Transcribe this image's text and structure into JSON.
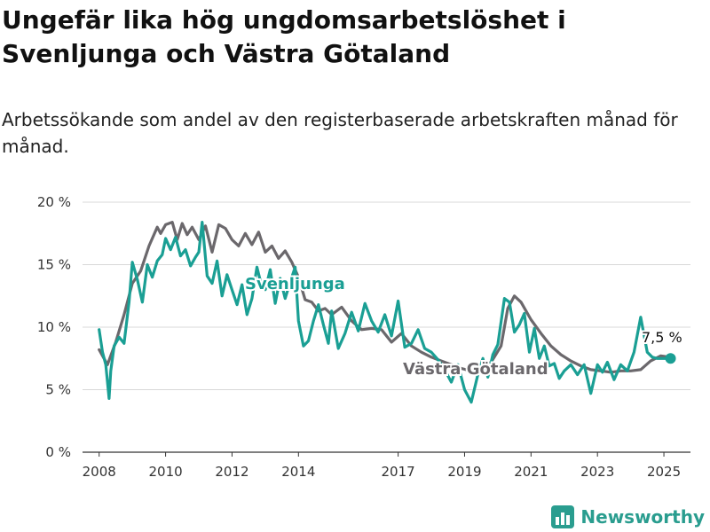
{
  "title": "Ungefär lika hög ungdomsarbetslöshet i Svenljunga och Västra Götaland",
  "subtitle": "Arbetssökande som andel av den registerbaserade arbetskraften månad för månad.",
  "brand": "Newsworthy",
  "colors": {
    "local": "#1a9f94",
    "region": "#6b686c",
    "grid": "#d8d8d8",
    "brand": "#2a9d8f"
  },
  "chart_data": {
    "type": "line",
    "ylim": [
      0,
      20
    ],
    "xlim": [
      2007.5,
      2025.8
    ],
    "yticks": [
      0,
      5,
      10,
      15,
      20
    ],
    "ytick_labels": [
      "0 %",
      "5 %",
      "10 %",
      "15 %",
      "20 %"
    ],
    "xticks": [
      2008,
      2010,
      2012,
      2014,
      2017,
      2019,
      2021,
      2023,
      2025
    ],
    "xtick_labels": [
      "2008",
      "2010",
      "2012",
      "2014",
      "2017",
      "2019",
      "2021",
      "2023",
      "2025"
    ],
    "last_value_label": "7,5 %",
    "series": [
      {
        "name": "Svenljunga",
        "x": [
          2008.0,
          2008.1,
          2008.2,
          2008.3,
          2008.35,
          2008.45,
          2008.6,
          2008.75,
          2008.9,
          2009.0,
          2009.15,
          2009.3,
          2009.45,
          2009.6,
          2009.75,
          2009.9,
          2010.0,
          2010.15,
          2010.3,
          2010.45,
          2010.6,
          2010.75,
          2010.9,
          2011.0,
          2011.1,
          2011.25,
          2011.4,
          2011.55,
          2011.7,
          2011.85,
          2012.0,
          2012.15,
          2012.3,
          2012.45,
          2012.6,
          2012.75,
          2012.9,
          2013.0,
          2013.15,
          2013.3,
          2013.45,
          2013.6,
          2013.75,
          2013.9,
          2014.0,
          2014.15,
          2014.3,
          2014.45,
          2014.6,
          2014.75,
          2014.9,
          2015.0,
          2015.2,
          2015.4,
          2015.6,
          2015.8,
          2016.0,
          2016.2,
          2016.4,
          2016.6,
          2016.8,
          2017.0,
          2017.2,
          2017.4,
          2017.6,
          2017.8,
          2018.0,
          2018.2,
          2018.4,
          2018.6,
          2018.8,
          2019.0,
          2019.2,
          2019.4,
          2019.55,
          2019.7,
          2019.85,
          2020.0,
          2020.2,
          2020.35,
          2020.5,
          2020.65,
          2020.8,
          2020.95,
          2021.1,
          2021.25,
          2021.4,
          2021.55,
          2021.7,
          2021.85,
          2022.0,
          2022.2,
          2022.4,
          2022.6,
          2022.8,
          2023.0,
          2023.15,
          2023.3,
          2023.5,
          2023.7,
          2023.9,
          2024.1,
          2024.3,
          2024.5,
          2024.65,
          2024.8,
          2025.0,
          2025.2
        ],
        "values": [
          9.8,
          8.0,
          7.0,
          4.3,
          6.5,
          8.5,
          9.2,
          8.7,
          12.0,
          15.2,
          13.8,
          12.0,
          15.0,
          14.0,
          15.3,
          15.8,
          17.1,
          16.2,
          17.2,
          15.7,
          16.2,
          14.9,
          15.6,
          16.0,
          18.4,
          14.1,
          13.5,
          15.3,
          12.5,
          14.2,
          13.0,
          11.8,
          13.4,
          11.0,
          12.3,
          14.8,
          13.2,
          13.0,
          14.6,
          11.9,
          13.9,
          12.3,
          13.6,
          14.8,
          10.5,
          8.5,
          8.9,
          10.5,
          11.8,
          10.2,
          8.7,
          11.3,
          8.3,
          9.5,
          11.2,
          9.7,
          11.9,
          10.5,
          9.6,
          11.0,
          9.3,
          12.1,
          8.4,
          8.7,
          9.8,
          8.3,
          8.0,
          7.4,
          6.6,
          5.6,
          7.0,
          5.0,
          4.0,
          6.2,
          7.5,
          6.0,
          7.8,
          8.6,
          12.3,
          12.0,
          9.6,
          10.2,
          11.1,
          8.0,
          9.9,
          7.5,
          8.5,
          6.9,
          7.1,
          5.9,
          6.5,
          7.0,
          6.2,
          7.0,
          4.7,
          7.0,
          6.4,
          7.2,
          5.8,
          7.0,
          6.5,
          8.0,
          10.8,
          8.0,
          7.6,
          7.5,
          7.5,
          7.5
        ]
      },
      {
        "name": "Västra Götaland",
        "x": [
          2008.0,
          2008.25,
          2008.5,
          2008.75,
          2009.0,
          2009.25,
          2009.5,
          2009.75,
          2009.85,
          2010.0,
          2010.2,
          2010.35,
          2010.5,
          2010.65,
          2010.8,
          2011.0,
          2011.2,
          2011.4,
          2011.6,
          2011.8,
          2012.0,
          2012.2,
          2012.4,
          2012.6,
          2012.8,
          2013.0,
          2013.2,
          2013.4,
          2013.6,
          2013.8,
          2014.0,
          2014.2,
          2014.4,
          2014.6,
          2014.8,
          2015.0,
          2015.3,
          2015.6,
          2015.9,
          2016.2,
          2016.5,
          2016.8,
          2017.1,
          2017.4,
          2017.7,
          2018.0,
          2018.3,
          2018.6,
          2018.9,
          2019.2,
          2019.5,
          2019.8,
          2020.1,
          2020.3,
          2020.5,
          2020.7,
          2021.0,
          2021.3,
          2021.6,
          2021.9,
          2022.2,
          2022.5,
          2022.8,
          2023.1,
          2023.4,
          2023.7,
          2024.0,
          2024.3,
          2024.6,
          2024.9,
          2025.2
        ],
        "values": [
          8.2,
          7.0,
          8.8,
          11.0,
          13.5,
          14.5,
          16.5,
          18.0,
          17.5,
          18.2,
          18.4,
          17.0,
          18.3,
          17.4,
          18.0,
          17.0,
          18.1,
          16.0,
          18.2,
          17.9,
          17.0,
          16.5,
          17.5,
          16.6,
          17.6,
          16.0,
          16.5,
          15.5,
          16.1,
          15.2,
          14.0,
          12.2,
          12.0,
          11.3,
          11.5,
          11.0,
          11.6,
          10.5,
          9.8,
          9.9,
          9.8,
          8.8,
          9.5,
          8.5,
          8.0,
          7.6,
          7.3,
          7.0,
          6.7,
          6.5,
          6.9,
          7.2,
          8.5,
          11.5,
          12.5,
          12.0,
          10.6,
          9.5,
          8.5,
          7.8,
          7.3,
          6.9,
          6.6,
          6.5,
          6.4,
          6.5,
          6.5,
          6.6,
          7.3,
          7.7,
          7.6
        ]
      }
    ]
  }
}
